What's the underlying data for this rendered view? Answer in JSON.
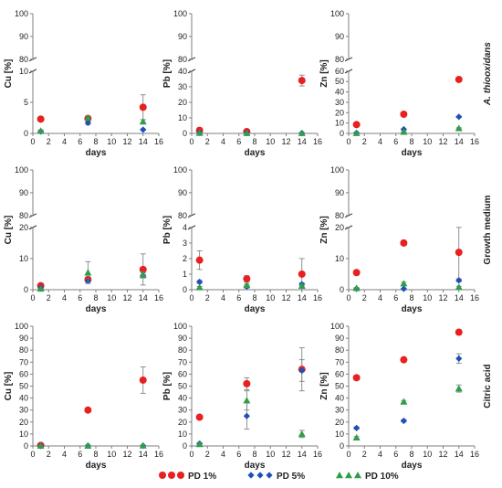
{
  "colors": {
    "pd1": "#e8201f",
    "pd5": "#1f4fb8",
    "pd10": "#2e9e4a",
    "axis": "#7f7f7f",
    "err": "#777777"
  },
  "legend": {
    "items": [
      {
        "key": "pd1",
        "label": "PD 1%",
        "marker": "circle"
      },
      {
        "key": "pd5",
        "label": "PD 5%",
        "marker": "diamond"
      },
      {
        "key": "pd10",
        "label": "PD 10%",
        "marker": "triangle"
      }
    ]
  },
  "row_labels": [
    "A. thiooxidans",
    "Growth medium",
    "Citric acid"
  ],
  "chart_data": [
    {
      "type": "scatter",
      "row": 0,
      "col": 0,
      "xlabel": "days",
      "ylabel": "Cu [%]",
      "xlim": [
        0,
        16
      ],
      "xticks": [
        0,
        2,
        4,
        6,
        8,
        10,
        12,
        14,
        16
      ],
      "broken": true,
      "lower_max": 10,
      "lower_ticks": [
        0,
        5,
        10
      ],
      "upper_min": 80,
      "upper_ticks": [
        80,
        90,
        100
      ],
      "x": [
        1,
        7,
        14
      ],
      "series": [
        {
          "key": "pd1",
          "values": [
            2.3,
            2.4,
            4.2
          ],
          "err": [
            0.3,
            0.2,
            2.0
          ]
        },
        {
          "key": "pd5",
          "values": [
            0.3,
            1.7,
            0.6
          ],
          "err": [
            0.1,
            0.3,
            0.1
          ]
        },
        {
          "key": "pd10",
          "values": [
            0.4,
            2.5,
            1.9
          ],
          "err": [
            0.2,
            0.3,
            0.3
          ]
        }
      ]
    },
    {
      "type": "scatter",
      "row": 0,
      "col": 1,
      "xlabel": "days",
      "ylabel": "Pb [%]",
      "xlim": [
        0,
        16
      ],
      "xticks": [
        0,
        2,
        4,
        6,
        8,
        10,
        12,
        14,
        16
      ],
      "broken": true,
      "lower_max": 40,
      "lower_ticks": [
        0,
        10,
        20,
        30,
        40
      ],
      "upper_min": 80,
      "upper_ticks": [
        80,
        90,
        100
      ],
      "x": [
        1,
        7,
        14
      ],
      "series": [
        {
          "key": "pd1",
          "values": [
            2.0,
            1.2,
            34.0
          ],
          "err": [
            0.5,
            0.4,
            3.5
          ]
        },
        {
          "key": "pd5",
          "values": [
            0.5,
            0.3,
            0.2
          ],
          "err": [
            0.1,
            0.1,
            0.1
          ]
        },
        {
          "key": "pd10",
          "values": [
            0.3,
            0.2,
            0.2
          ],
          "err": [
            0.1,
            0.1,
            0.1
          ]
        }
      ]
    },
    {
      "type": "scatter",
      "row": 0,
      "col": 2,
      "xlabel": "days",
      "ylabel": "Zn [%]",
      "xlim": [
        0,
        16
      ],
      "xticks": [
        0,
        2,
        4,
        6,
        8,
        10,
        12,
        14,
        16
      ],
      "broken": true,
      "lower_max": 60,
      "lower_ticks": [
        0,
        10,
        20,
        30,
        40,
        50,
        60
      ],
      "upper_min": 80,
      "upper_ticks": [
        80,
        90,
        100
      ],
      "x": [
        1,
        7,
        14
      ],
      "series": [
        {
          "key": "pd1",
          "values": [
            8.5,
            18.5,
            52.0
          ],
          "err": [
            1.5,
            1.0,
            1.0
          ]
        },
        {
          "key": "pd5",
          "values": [
            0.5,
            4.0,
            16.0
          ],
          "err": [
            0.2,
            0.5,
            0.5
          ]
        },
        {
          "key": "pd10",
          "values": [
            0.3,
            1.5,
            5.0
          ],
          "err": [
            0.1,
            0.3,
            0.5
          ]
        }
      ]
    },
    {
      "type": "scatter",
      "row": 1,
      "col": 0,
      "xlabel": "days",
      "ylabel": "Cu [%]",
      "xlim": [
        0,
        16
      ],
      "xticks": [
        0,
        2,
        4,
        6,
        8,
        10,
        12,
        14,
        16
      ],
      "broken": true,
      "lower_max": 20,
      "lower_ticks": [
        0,
        10,
        20
      ],
      "upper_min": 80,
      "upper_ticks": [
        80,
        90,
        100
      ],
      "x": [
        1,
        7,
        14
      ],
      "series": [
        {
          "key": "pd1",
          "values": [
            1.3,
            3.3,
            6.5
          ],
          "err": [
            0.3,
            0.6,
            5.0
          ]
        },
        {
          "key": "pd5",
          "values": [
            0.6,
            2.8,
            4.6
          ],
          "err": [
            0.2,
            0.5,
            0.8
          ]
        },
        {
          "key": "pd10",
          "values": [
            0.3,
            5.5,
            4.8
          ],
          "err": [
            0.1,
            3.5,
            1.0
          ]
        }
      ]
    },
    {
      "type": "scatter",
      "row": 1,
      "col": 1,
      "xlabel": "days",
      "ylabel": "Pb [%]",
      "xlim": [
        0,
        16
      ],
      "xticks": [
        0,
        2,
        4,
        6,
        8,
        10,
        12,
        14,
        16
      ],
      "broken": true,
      "lower_max": 4,
      "lower_ticks": [
        0,
        1,
        2,
        3,
        4
      ],
      "upper_min": 80,
      "upper_ticks": [
        80,
        90,
        100
      ],
      "x": [
        1,
        7,
        14
      ],
      "series": [
        {
          "key": "pd1",
          "values": [
            1.9,
            0.7,
            1.0
          ],
          "err": [
            0.6,
            0.2,
            1.0
          ]
        },
        {
          "key": "pd5",
          "values": [
            0.5,
            0.2,
            0.35
          ],
          "err": [
            0.1,
            0.1,
            0.1
          ]
        },
        {
          "key": "pd10",
          "values": [
            0.15,
            0.3,
            0.25
          ],
          "err": [
            0.05,
            0.1,
            0.1
          ]
        }
      ]
    },
    {
      "type": "scatter",
      "row": 1,
      "col": 2,
      "xlabel": "days",
      "ylabel": "Zn [%]",
      "xlim": [
        0,
        16
      ],
      "xticks": [
        0,
        2,
        4,
        6,
        8,
        10,
        12,
        14,
        16
      ],
      "broken": true,
      "lower_max": 20,
      "lower_ticks": [
        0,
        10,
        20
      ],
      "upper_min": 80,
      "upper_ticks": [
        80,
        90,
        100
      ],
      "x": [
        1,
        7,
        14
      ],
      "series": [
        {
          "key": "pd1",
          "values": [
            5.5,
            15.0,
            12.0
          ],
          "err": [
            0.6,
            0.8,
            9.0
          ]
        },
        {
          "key": "pd5",
          "values": [
            0.3,
            0.3,
            3.0
          ],
          "err": [
            0.1,
            0.1,
            0.5
          ]
        },
        {
          "key": "pd10",
          "values": [
            0.5,
            2.0,
            0.8
          ],
          "err": [
            0.2,
            0.4,
            0.3
          ]
        }
      ]
    },
    {
      "type": "scatter",
      "row": 2,
      "col": 0,
      "xlabel": "days",
      "ylabel": "Cu [%]",
      "xlim": [
        0,
        16
      ],
      "xticks": [
        0,
        2,
        4,
        6,
        8,
        10,
        12,
        14,
        16
      ],
      "broken": false,
      "ylim": [
        0,
        100
      ],
      "yticks": [
        0,
        10,
        20,
        30,
        40,
        50,
        60,
        70,
        80,
        90,
        100
      ],
      "x": [
        1,
        7,
        14
      ],
      "series": [
        {
          "key": "pd1",
          "values": [
            0.5,
            30.0,
            55.0
          ],
          "err": [
            0.3,
            1.0,
            11.0
          ]
        },
        {
          "key": "pd5",
          "values": [
            0.3,
            0.2,
            0.2
          ],
          "err": [
            0.1,
            0.1,
            0.1
          ]
        },
        {
          "key": "pd10",
          "values": [
            0.2,
            0.2,
            0.3
          ],
          "err": [
            0.1,
            0.1,
            0.1
          ]
        }
      ]
    },
    {
      "type": "scatter",
      "row": 2,
      "col": 1,
      "xlabel": "days",
      "ylabel": "Pb [%]",
      "xlim": [
        0,
        16
      ],
      "xticks": [
        0,
        2,
        4,
        6,
        8,
        10,
        12,
        14,
        16
      ],
      "broken": false,
      "ylim": [
        0,
        100
      ],
      "yticks": [
        0,
        10,
        20,
        30,
        40,
        50,
        60,
        70,
        80,
        90,
        100
      ],
      "x": [
        1,
        7,
        14
      ],
      "series": [
        {
          "key": "pd1",
          "values": [
            24.0,
            52.0,
            64.0
          ],
          "err": [
            1.0,
            5.0,
            18.0
          ]
        },
        {
          "key": "pd5",
          "values": [
            2.0,
            25.0,
            63.0
          ],
          "err": [
            0.5,
            11.0,
            9.0
          ]
        },
        {
          "key": "pd10",
          "values": [
            1.5,
            38.0,
            10.0
          ],
          "err": [
            0.5,
            8.0,
            3.0
          ]
        }
      ]
    },
    {
      "type": "scatter",
      "row": 2,
      "col": 2,
      "xlabel": "days",
      "ylabel": "Zn [%]",
      "xlim": [
        0,
        16
      ],
      "xticks": [
        0,
        2,
        4,
        6,
        8,
        10,
        12,
        14,
        16
      ],
      "broken": false,
      "ylim": [
        0,
        100
      ],
      "yticks": [
        0,
        10,
        20,
        30,
        40,
        50,
        60,
        70,
        80,
        90,
        100
      ],
      "x": [
        1,
        7,
        14
      ],
      "series": [
        {
          "key": "pd1",
          "values": [
            57.0,
            72.0,
            95.0
          ],
          "err": [
            2.0,
            1.0,
            2.0
          ]
        },
        {
          "key": "pd5",
          "values": [
            15.0,
            21.0,
            73.0
          ],
          "err": [
            1.0,
            1.0,
            4.0
          ]
        },
        {
          "key": "pd10",
          "values": [
            7.0,
            37.0,
            48.0
          ],
          "err": [
            0.8,
            1.0,
            3.0
          ]
        }
      ]
    }
  ]
}
